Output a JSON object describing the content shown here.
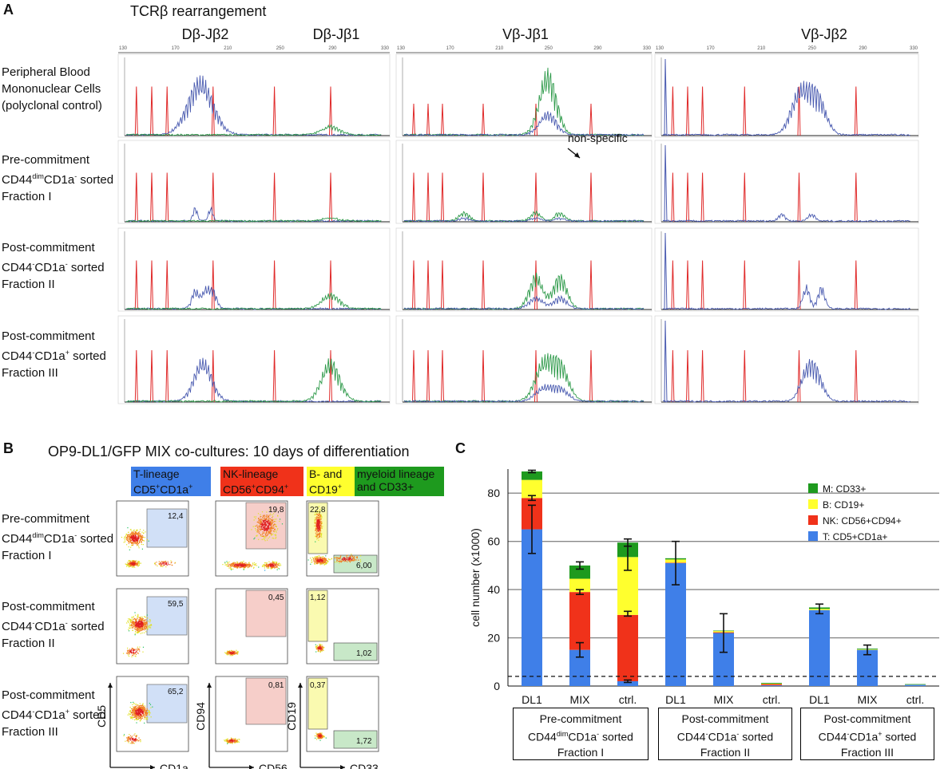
{
  "panel_a": {
    "letter": "A",
    "title": "TCRβ rearrangement",
    "column_headers": [
      "Dβ-Jβ2",
      "Dβ-Jβ1",
      "Vβ-Jβ1",
      "Vβ-Jβ2"
    ],
    "row_labels": [
      {
        "l1": "Peripheral Blood",
        "l2": "Mononuclear Cells",
        "l3": "(polyclonal control)"
      },
      {
        "l1": "Pre-commitment",
        "l2": "CD44dimCD1a- sorted",
        "l3": "Fraction I"
      },
      {
        "l1": "Post-commitment",
        "l2": "CD44-CD1a- sorted",
        "l3": "Fraction II"
      },
      {
        "l1": "Post-commitment",
        "l2": "CD44-CD1a+ sorted",
        "l3": "Fraction III"
      }
    ],
    "x_ticks": [
      "130",
      "170",
      "210",
      "250",
      "290",
      "330"
    ],
    "annotation": "non-specific"
  },
  "panel_b": {
    "letter": "B",
    "title": "OP9-DL1/GFP MIX co-cultures: 10 days of differentiation",
    "headers": {
      "t": {
        "l1": "T-lineage",
        "l2": "CD5+CD1a+",
        "color": "#3f7fe8"
      },
      "nk": {
        "l1": "NK-lineage",
        "l2": "CD56+CD94+",
        "color": "#f0321a"
      },
      "b": {
        "l1": "B- and",
        "l2": "CD19+",
        "color": "#ffff2e"
      },
      "m": {
        "l1": "myeloid lineage",
        "l2": "and CD33+",
        "color": "#1e9a1e"
      }
    },
    "row_labels": [
      {
        "l1": "Pre-commitment",
        "l2": "CD44dimCD1a- sorted",
        "l3": "Fraction I"
      },
      {
        "l1": "Post-commitment",
        "l2": "CD44-CD1a- sorted",
        "l3": "Fraction II"
      },
      {
        "l1": "Post-commitment",
        "l2": "CD44-CD1a+ sorted",
        "l3": "Fraction III"
      }
    ],
    "gate_values": [
      {
        "t": "12,4",
        "nk": "19,8",
        "b": "22,8",
        "m": "6,00"
      },
      {
        "t": "59,5",
        "nk": "0,45",
        "b": "1,12",
        "m": "1,02"
      },
      {
        "t": "65,2",
        "nk": "0,81",
        "b": "0,37",
        "m": "1,72"
      }
    ],
    "axes": {
      "t": {
        "x": "CD1a",
        "y": "CD5"
      },
      "nk": {
        "x": "CD56",
        "y": "CD94"
      },
      "b": {
        "x": "CD33",
        "y": "CD19"
      }
    }
  },
  "chart_data": {
    "panel_letter": "C",
    "type": "stacked-bar",
    "ylabel": "cell number (x1000)",
    "ylim": [
      0,
      90
    ],
    "yticks": [
      0,
      20,
      40,
      60,
      80
    ],
    "categories": [
      "DL1",
      "MIX",
      "ctrl.",
      "DL1",
      "MIX",
      "ctrl.",
      "DL1",
      "MIX",
      "ctrl."
    ],
    "groups": [
      {
        "l1": "Pre-commitment",
        "l2": "CD44dimCD1a- sorted",
        "l3": "Fraction I"
      },
      {
        "l1": "Post-commitment",
        "l2": "CD44-CD1a- sorted",
        "l3": "Fraction II"
      },
      {
        "l1": "Post-commitment",
        "l2": "CD44-CD1a+ sorted",
        "l3": "Fraction III"
      }
    ],
    "series": [
      {
        "name": "T: CD5+CD1a+",
        "color": "#3f7fe8",
        "values": [
          65,
          15,
          2,
          51,
          22,
          0.3,
          31.5,
          15,
          0.5
        ]
      },
      {
        "name": "NK: CD56+CD94+",
        "color": "#f0321a",
        "values": [
          13,
          24,
          27.5,
          0.2,
          0.3,
          0.5,
          0,
          0,
          0
        ]
      },
      {
        "name": "B: CD19+",
        "color": "#ffff2e",
        "values": [
          7.5,
          5.5,
          24,
          1.3,
          0.5,
          0.2,
          0.5,
          0.2,
          0.1
        ]
      },
      {
        "name": "M: CD33+",
        "color": "#1e9a1e",
        "values": [
          3.5,
          5.5,
          6,
          0.5,
          0.2,
          0.3,
          0.6,
          0.3,
          0.2
        ]
      }
    ],
    "error_bars": [
      [
        [
          65,
          10
        ],
        [
          78,
          1
        ],
        [
          89,
          0.5
        ]
      ],
      [
        [
          15,
          3
        ],
        [
          39,
          1
        ],
        [
          50,
          1.5
        ]
      ],
      [
        [
          2,
          0.5
        ],
        [
          30,
          1
        ],
        [
          53,
          5
        ],
        [
          59.5,
          1.5
        ]
      ],
      [
        [
          51,
          9
        ]
      ],
      [
        [
          22,
          8
        ]
      ],
      [],
      [
        [
          32,
          2
        ]
      ],
      [
        [
          15,
          2
        ]
      ],
      []
    ],
    "threshold": 4
  }
}
